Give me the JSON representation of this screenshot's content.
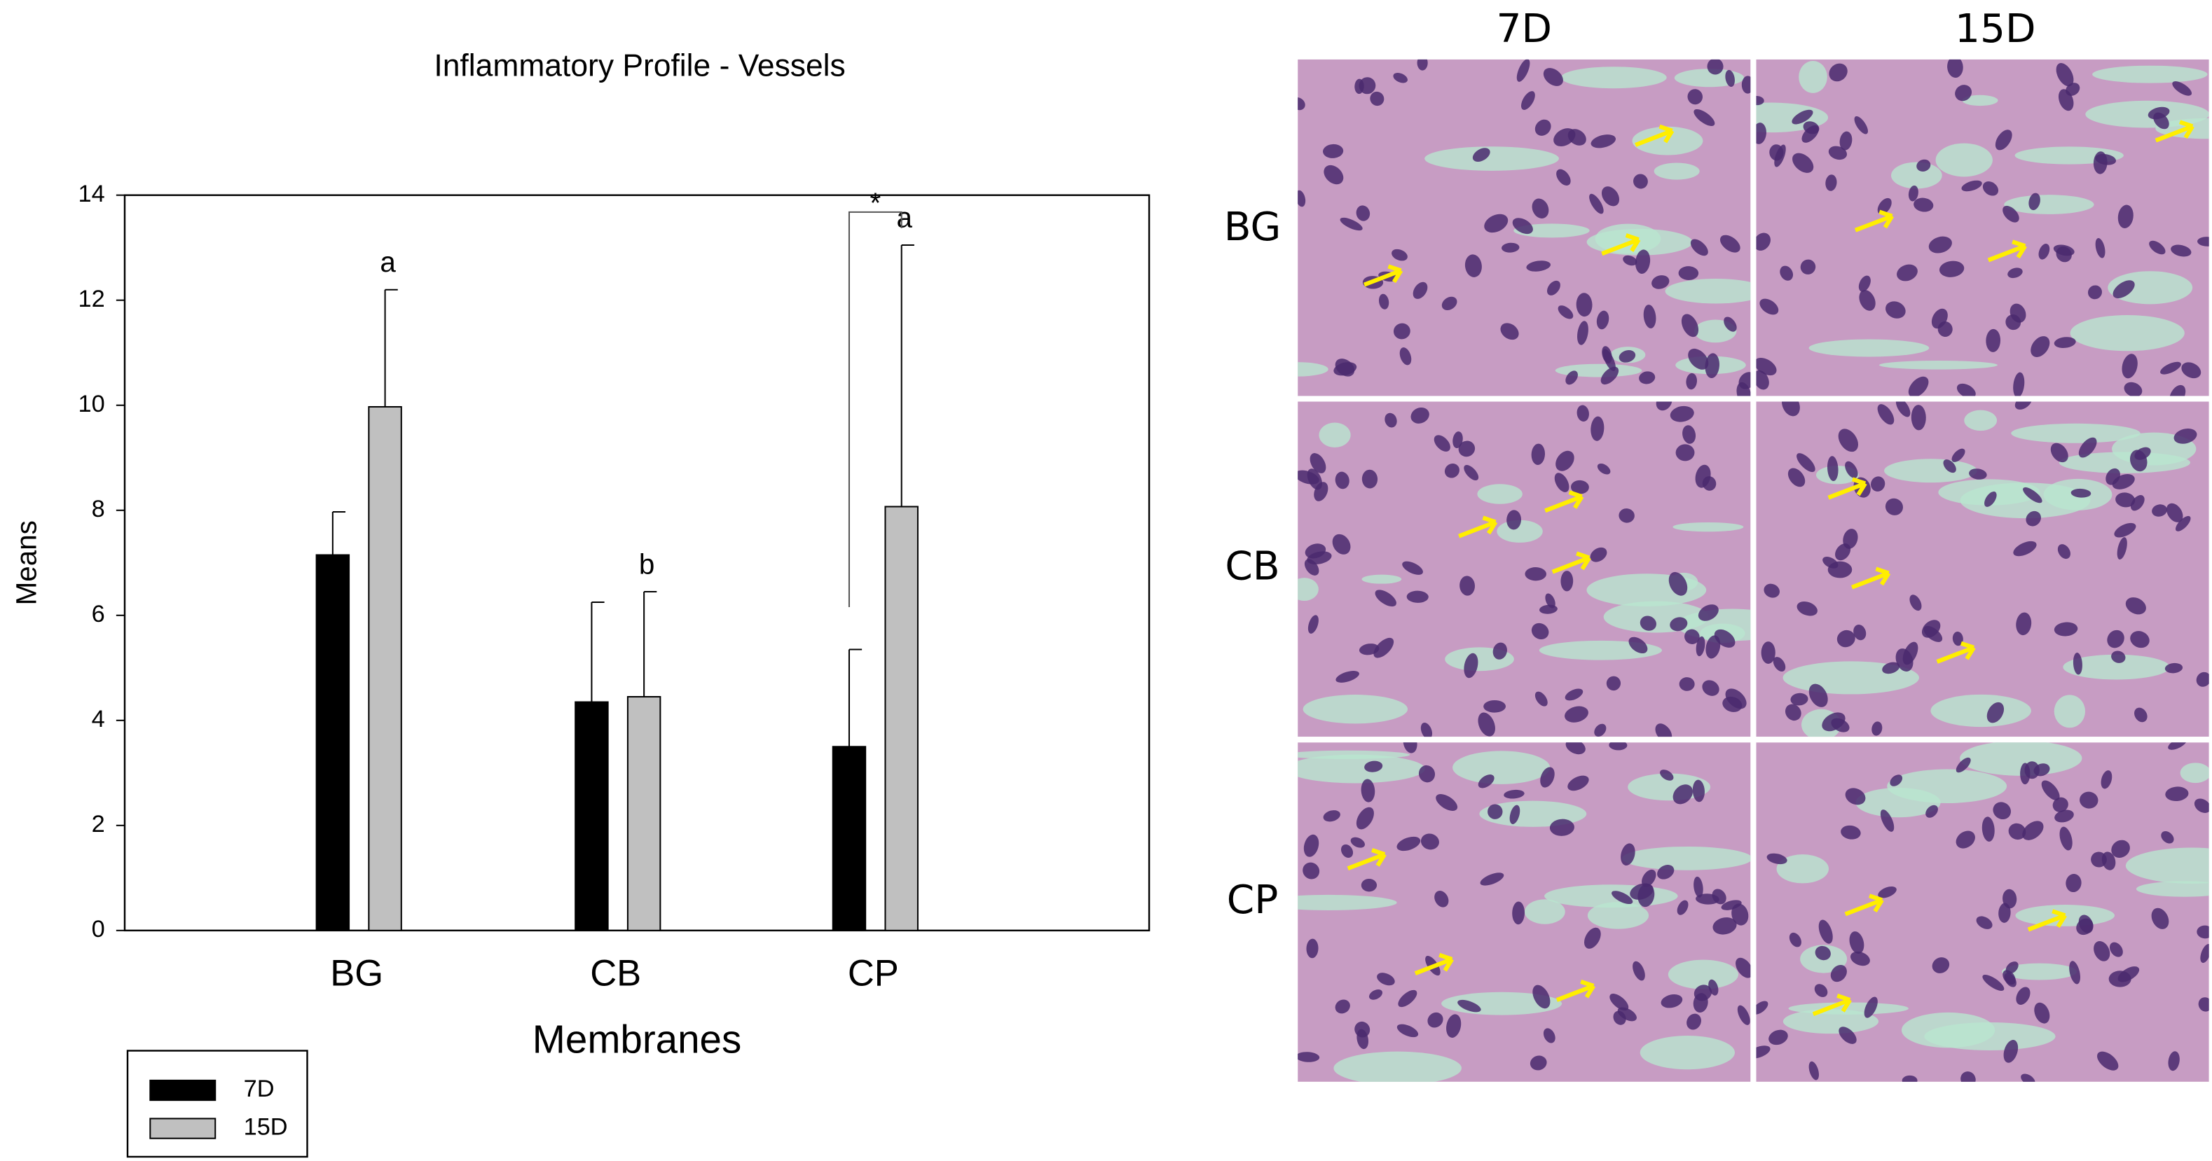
{
  "chart_data": {
    "type": "bar",
    "title": "Inflammatory Profile - Vessels",
    "x_label": "Membranes",
    "y_label": "Means",
    "categories": [
      "BG",
      "CB",
      "CP"
    ],
    "series": [
      {
        "name": "7D",
        "color": "#000000",
        "values": [
          7.15,
          4.35,
          3.5
        ],
        "errors": [
          0.82,
          1.9,
          1.85
        ]
      },
      {
        "name": "15D",
        "color": "#c0c0c0",
        "values": [
          9.97,
          4.45,
          8.07
        ],
        "errors": [
          2.23,
          2.0,
          4.98
        ]
      }
    ],
    "annotations": [
      "a",
      "b",
      "a",
      "*"
    ],
    "ylim": [
      0,
      14
    ],
    "yticks": [
      0,
      2,
      4,
      6,
      8,
      10,
      12,
      14
    ],
    "grid": false,
    "legend": "bottom-left"
  },
  "micrographs": {
    "columns": [
      "7D",
      "15D"
    ],
    "rows": [
      "BG",
      "CB",
      "CP"
    ]
  }
}
